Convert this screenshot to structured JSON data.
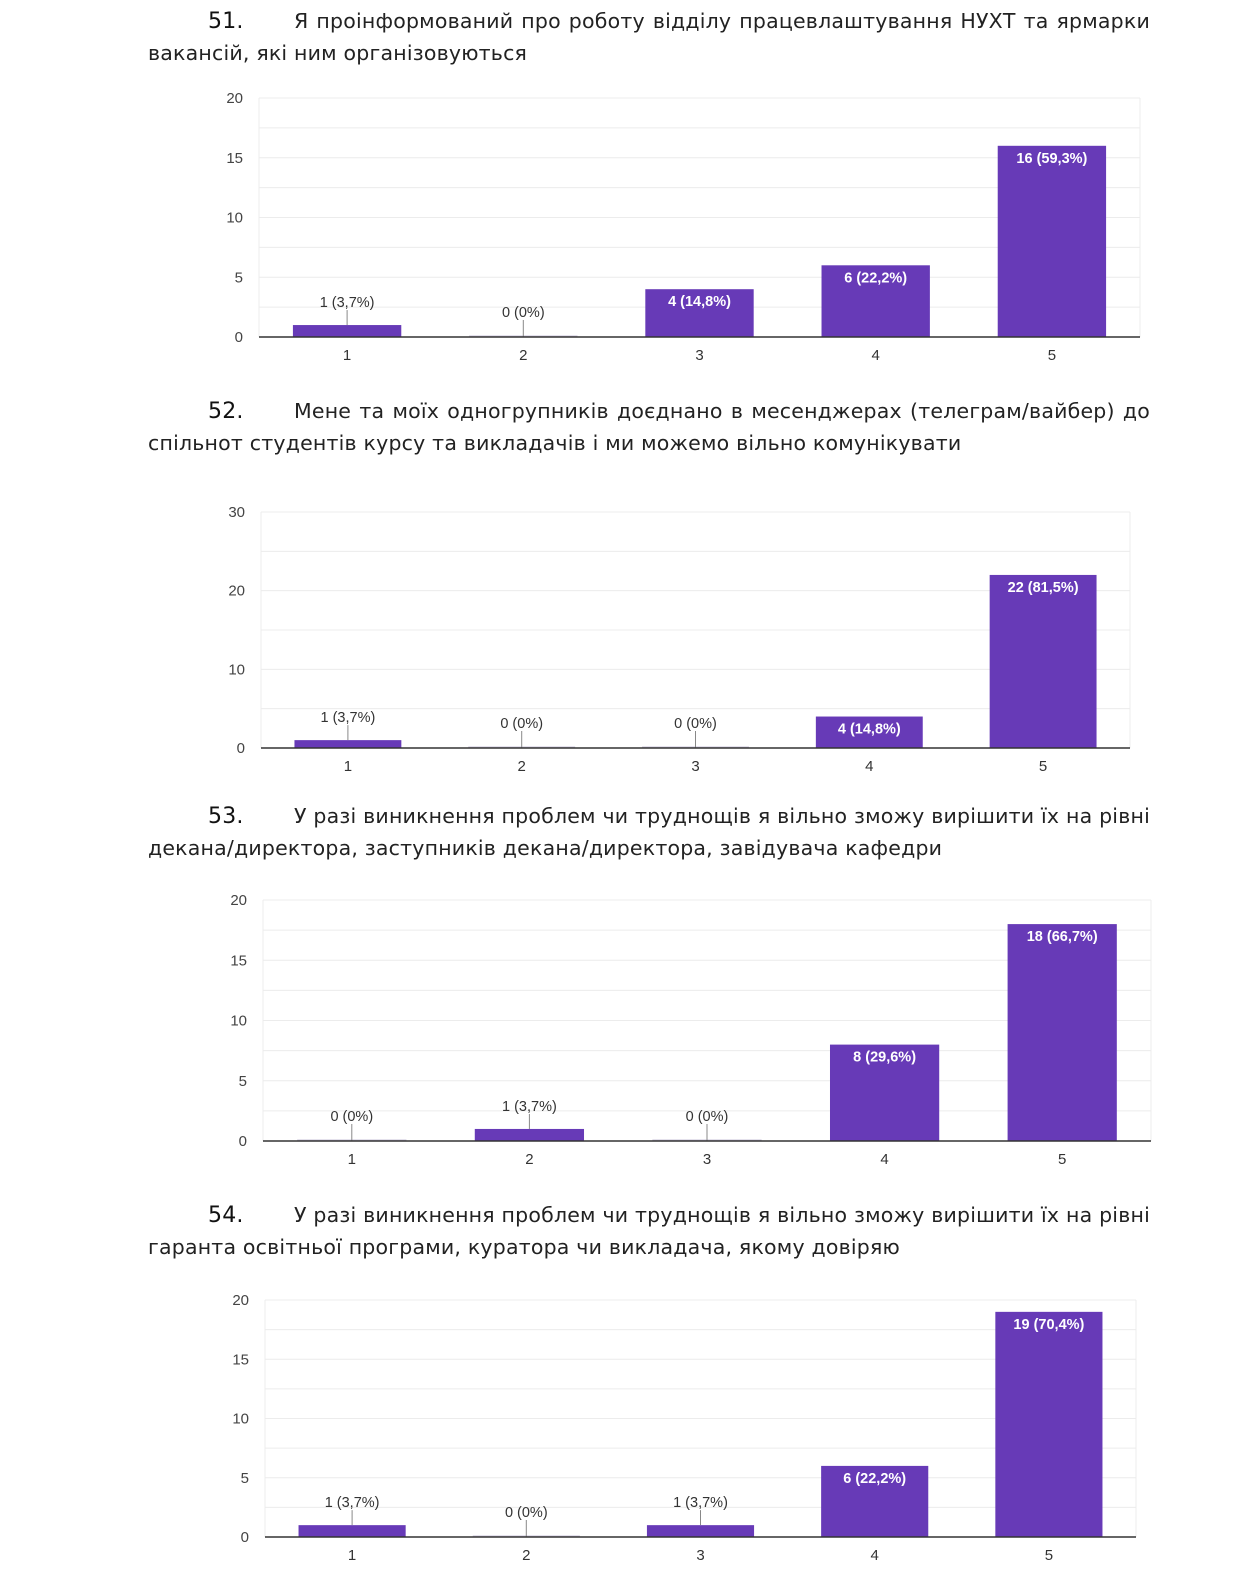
{
  "questions": [
    {
      "number": "51.",
      "text": "Я проінформований про роботу відділу працевлаштування НУХТ та ярмарки вакансій, які ним організовуються"
    },
    {
      "number": "52.",
      "text": "Мене та моїх одногрупників доєднано в месенджерах (телеграм/вайбер) до спільнот студентів курсу та викладачів і ми можемо вільно комунікувати"
    },
    {
      "number": "53.",
      "text": "У разі виникнення проблем чи труднощів я вільно зможу вирішити їх на рівні декана/директора, заступників декана/директора, завідувача кафедри"
    },
    {
      "number": "54.",
      "text": "У разі виникнення проблем чи труднощів я вільно зможу вирішити їх на рівні гаранта освітньої програми, куратора чи викладача, якому довіряю"
    }
  ],
  "colors": {
    "bar": "#673ab7",
    "grid": "#ececec",
    "axis": "#333333"
  },
  "chart_data": [
    {
      "type": "bar",
      "title": "",
      "xlabel": "",
      "ylabel": "",
      "categories": [
        "1",
        "2",
        "3",
        "4",
        "5"
      ],
      "values": [
        1,
        0,
        4,
        6,
        16
      ],
      "labels": [
        "1 (3,7%)",
        "0 (0%)",
        "4 (14,8%)",
        "6 (22,2%)",
        "16 (59,3%)"
      ],
      "ylim": [
        0,
        20
      ],
      "yticks": [
        "0",
        "5",
        "10",
        "15",
        "20"
      ],
      "ytick_values": [
        0,
        5,
        10,
        15,
        20
      ],
      "grid": true
    },
    {
      "type": "bar",
      "title": "",
      "xlabel": "",
      "ylabel": "",
      "categories": [
        "1",
        "2",
        "3",
        "4",
        "5"
      ],
      "values": [
        1,
        0,
        0,
        4,
        22
      ],
      "labels": [
        "1 (3,7%)",
        "0 (0%)",
        "0 (0%)",
        "4 (14,8%)",
        "22 (81,5%)"
      ],
      "ylim": [
        0,
        30
      ],
      "yticks": [
        "0",
        "10",
        "20",
        "30"
      ],
      "ytick_values": [
        0,
        10,
        20,
        30
      ],
      "grid": true
    },
    {
      "type": "bar",
      "title": "",
      "xlabel": "",
      "ylabel": "",
      "categories": [
        "1",
        "2",
        "3",
        "4",
        "5"
      ],
      "values": [
        0,
        1,
        0,
        8,
        18
      ],
      "labels": [
        "0 (0%)",
        "1 (3,7%)",
        "0 (0%)",
        "8 (29,6%)",
        "18 (66,7%)"
      ],
      "ylim": [
        0,
        20
      ],
      "yticks": [
        "0",
        "5",
        "10",
        "15",
        "20"
      ],
      "ytick_values": [
        0,
        5,
        10,
        15,
        20
      ],
      "grid": true
    },
    {
      "type": "bar",
      "title": "",
      "xlabel": "",
      "ylabel": "",
      "categories": [
        "1",
        "2",
        "3",
        "4",
        "5"
      ],
      "values": [
        1,
        0,
        1,
        6,
        19
      ],
      "labels": [
        "1 (3,7%)",
        "0 (0%)",
        "1 (3,7%)",
        "6 (22,2%)",
        "19 (70,4%)"
      ],
      "ylim": [
        0,
        20
      ],
      "yticks": [
        "0",
        "5",
        "10",
        "15",
        "20"
      ],
      "ytick_values": [
        0,
        5,
        10,
        15,
        20
      ],
      "grid": true
    }
  ]
}
